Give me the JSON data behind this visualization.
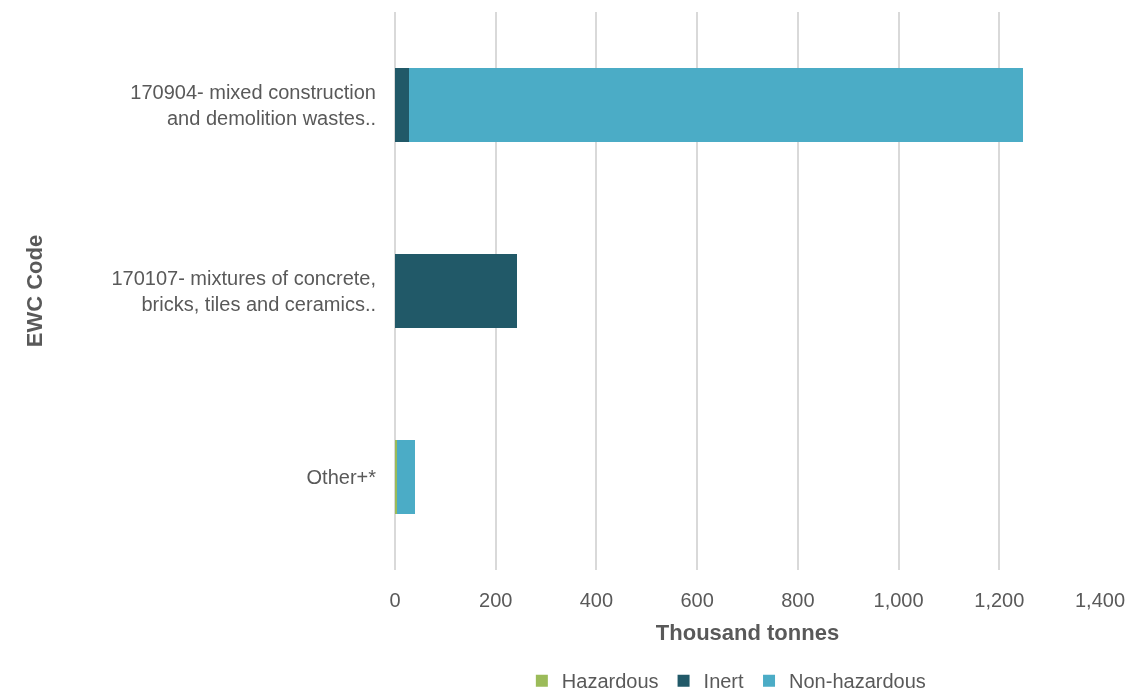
{
  "chart_data": {
    "type": "bar",
    "orientation": "horizontal",
    "stacked": true,
    "categories": [
      "170904- mixed construction\nand demolition wastes..",
      "170107- mixtures of concrete,\nbricks, tiles and ceramics..",
      "Other+*"
    ],
    "series": [
      {
        "name": "Hazardous",
        "color": "#9bbb59",
        "values": [
          0,
          0,
          4
        ]
      },
      {
        "name": "Inert",
        "color": "#215968",
        "values": [
          27,
          243,
          0
        ]
      },
      {
        "name": "Non-hazardous",
        "color": "#4bacc6",
        "values": [
          1220,
          0,
          35
        ]
      }
    ],
    "xlabel": "Thousand tonnes",
    "ylabel": "EWC Code",
    "xlim": [
      0,
      1400
    ],
    "xticks": [
      0,
      200,
      400,
      600,
      800,
      {
        "value": 1000,
        "label": "1,000"
      },
      {
        "value": 1200,
        "label": "1,200"
      },
      {
        "value": 1400,
        "label": "1,400"
      }
    ],
    "grid": "x",
    "legend": "bottom"
  }
}
